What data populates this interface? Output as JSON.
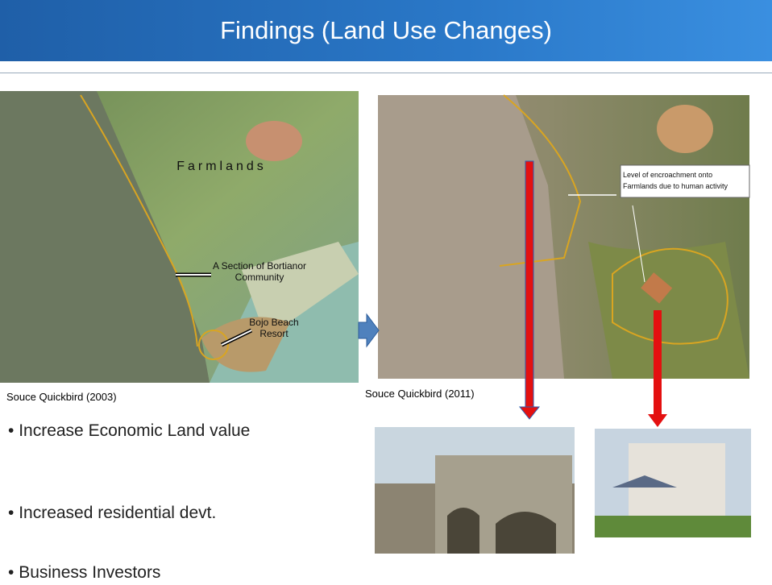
{
  "header": {
    "title": "Findings (Land Use Changes)"
  },
  "images": [
    {
      "labels": [
        "Farmlands",
        "A Section of Bortianor Community",
        "Bojo Beach Resort"
      ],
      "caption": "Souce Quickbird (2003)"
    },
    {
      "labels": [
        "Level of encroachment onto Farmlands due to human activity"
      ],
      "caption": "Souce Quickbird (2011)"
    }
  ],
  "bullets": [
    "Increase Economic Land value",
    "Increased residential devt.",
    "Business Investors"
  ]
}
